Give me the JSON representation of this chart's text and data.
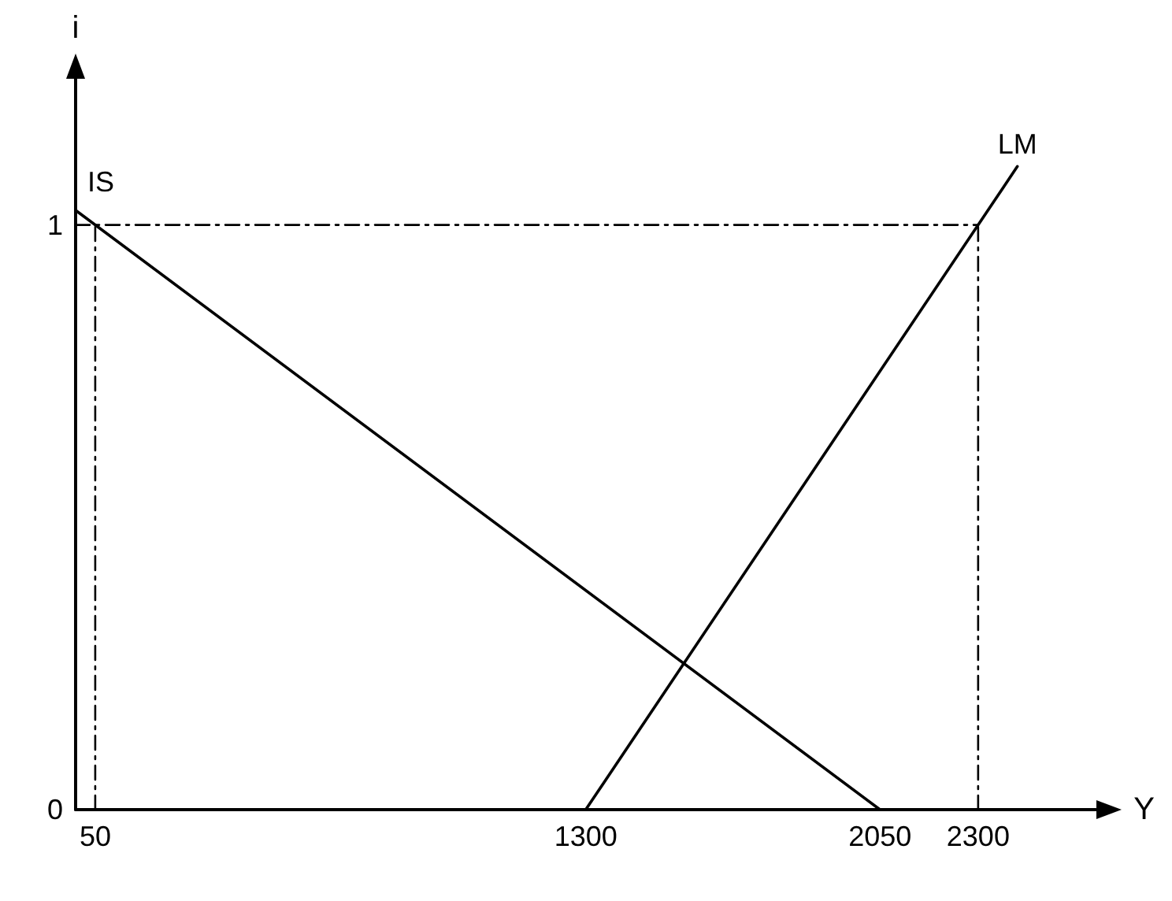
{
  "chart_data": {
    "type": "line",
    "xlabel": "Y",
    "ylabel": "i",
    "xlim": [
      0,
      2600
    ],
    "ylim": [
      0,
      1.25
    ],
    "xticks": [
      50,
      1300,
      2050,
      2300
    ],
    "yticks": [
      0,
      1
    ],
    "grid": false,
    "marker": "none",
    "series": [
      {
        "name": "IS",
        "color": "#000000",
        "x": [
          0,
          2050
        ],
        "values": [
          1.025,
          0
        ]
      },
      {
        "name": "LM",
        "color": "#000000",
        "x": [
          1300,
          2400
        ],
        "values": [
          0,
          1.1
        ]
      },
      {
        "color": "#000000",
        "line_style": "dashed",
        "x": [
          0,
          2300
        ],
        "values": [
          1,
          1
        ]
      },
      {
        "color": "#000000",
        "line_style": "dashed",
        "x": [
          50,
          50
        ],
        "values": [
          0,
          1
        ]
      },
      {
        "color": "#000000",
        "line_style": "dashed",
        "x": [
          2300,
          2300
        ],
        "values": [
          0,
          1
        ]
      }
    ]
  }
}
